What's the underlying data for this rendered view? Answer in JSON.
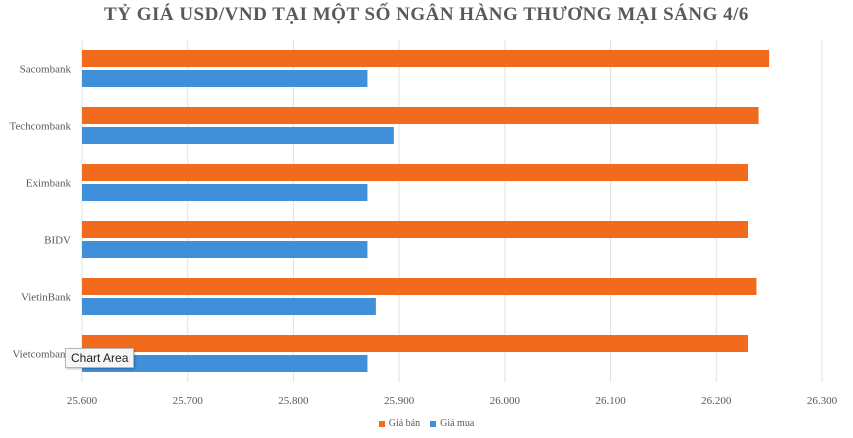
{
  "chart_data": {
    "type": "bar",
    "orientation": "horizontal",
    "title": "TỶ GIÁ USD/VND TẠI MỘT SỐ NGÂN HÀNG THƯƠNG MẠI SÁNG 4/6",
    "categories": [
      "Sacombank",
      "Techcombank",
      "Eximbank",
      "BIDV",
      "VietinBank",
      "Vietcombank"
    ],
    "series": [
      {
        "name": "Giá bán",
        "color": "#f26a1b",
        "values": [
          26250,
          26240,
          26230,
          26230,
          26238,
          26230
        ]
      },
      {
        "name": "Giá mua",
        "color": "#3f8fd9",
        "values": [
          25870,
          25895,
          25870,
          25870,
          25878,
          25870
        ]
      }
    ],
    "xlim": [
      25600,
      26300
    ],
    "xticks": [
      "25.600",
      "25.700",
      "25.800",
      "25.900",
      "26.000",
      "26.100",
      "26.200",
      "26.300"
    ],
    "xtick_values": [
      25600,
      25700,
      25800,
      25900,
      26000,
      26100,
      26200,
      26300
    ],
    "grid": "vertical",
    "legend_position": "bottom"
  },
  "tooltip": {
    "text": "Chart Area"
  }
}
